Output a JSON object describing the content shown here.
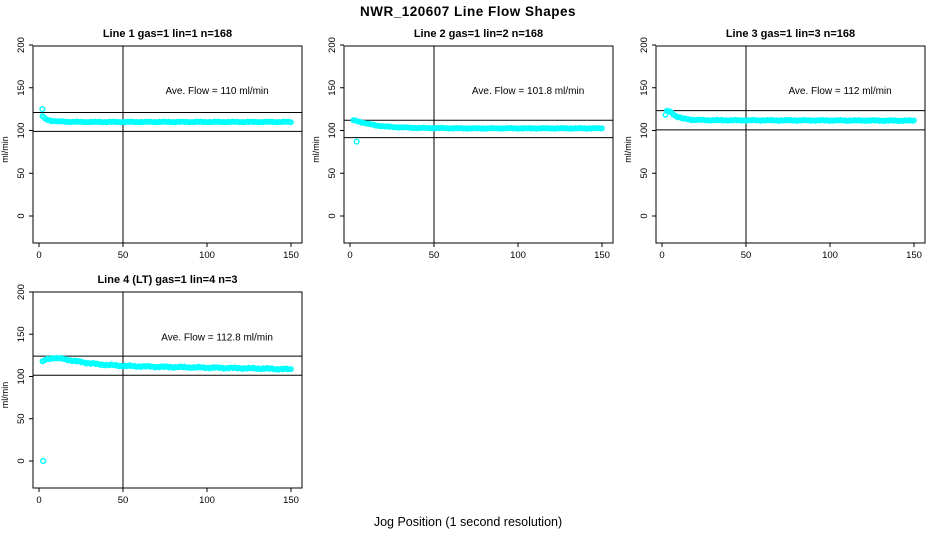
{
  "title": "NWR_120607  Line Flow Shapes",
  "xlabel": "Jog Position (1 second resolution)",
  "marker_color": "#00FFFF",
  "axis_color": "#000000",
  "chart_data": [
    {
      "type": "scatter",
      "title": "Line 1 gas=1 lin=1 n=168",
      "ylabel": "ml/min",
      "ave_flow": 110,
      "annotation": "Ave. Flow =  110  ml/min",
      "x_ticks": [
        0,
        50,
        100,
        150
      ],
      "y_ticks": [
        0,
        50,
        100,
        150,
        200
      ],
      "xlim": [
        -4,
        157
      ],
      "ylim": [
        -32,
        201
      ],
      "vline_x": 50,
      "hlines": [
        121,
        99
      ],
      "keypoints": [
        [
          2,
          117
        ],
        [
          4,
          113
        ],
        [
          7,
          111.5
        ],
        [
          12,
          110.5
        ],
        [
          25,
          110
        ],
        [
          60,
          110
        ],
        [
          100,
          110
        ],
        [
          150,
          110
        ]
      ],
      "outliers": [
        [
          2,
          125
        ]
      ],
      "jitter": 0.5,
      "n_points": 160
    },
    {
      "type": "scatter",
      "title": "Line 2 gas=1 lin=2 n=168",
      "ylabel": "ml/min",
      "ave_flow": 101.8,
      "annotation": "Ave. Flow =  101.8  ml/min",
      "x_ticks": [
        0,
        50,
        100,
        150
      ],
      "y_ticks": [
        0,
        50,
        100,
        150,
        200
      ],
      "xlim": [
        -4,
        157
      ],
      "ylim": [
        -32,
        201
      ],
      "vline_x": 50,
      "hlines": [
        112,
        91.6
      ],
      "keypoints": [
        [
          2,
          112
        ],
        [
          4,
          111
        ],
        [
          8,
          109
        ],
        [
          15,
          106
        ],
        [
          25,
          104
        ],
        [
          40,
          103
        ],
        [
          70,
          102.5
        ],
        [
          150,
          102.5
        ]
      ],
      "outliers": [
        [
          4,
          87
        ]
      ],
      "jitter": 0.5,
      "n_points": 160
    },
    {
      "type": "scatter",
      "title": "Line 3 gas=1 lin=3 n=168",
      "ylabel": "ml/min",
      "ave_flow": 112,
      "annotation": "Ave. Flow =  112  ml/min",
      "x_ticks": [
        0,
        50,
        100,
        150
      ],
      "y_ticks": [
        0,
        50,
        100,
        150,
        200
      ],
      "xlim": [
        -4,
        157
      ],
      "ylim": [
        -32,
        201
      ],
      "vline_x": 50,
      "hlines": [
        123.2,
        100.8
      ],
      "keypoints": [
        [
          2,
          118
        ],
        [
          3,
          123
        ],
        [
          5,
          122
        ],
        [
          8,
          117
        ],
        [
          12,
          114
        ],
        [
          18,
          112.5
        ],
        [
          30,
          112
        ],
        [
          90,
          111.8
        ],
        [
          150,
          111.5
        ]
      ],
      "outliers": [],
      "jitter": 0.6,
      "n_points": 160
    },
    {
      "type": "scatter",
      "title": "Line 4 (LT) gas=1 lin=4 n=3",
      "ylabel": "ml/min",
      "ave_flow": 112.8,
      "annotation": "Ave. Flow =  112.8  ml/min",
      "x_ticks": [
        0,
        50,
        100,
        150
      ],
      "y_ticks": [
        0,
        50,
        100,
        150,
        200
      ],
      "xlim": [
        -4,
        157
      ],
      "ylim": [
        -32,
        201
      ],
      "vline_x": 50,
      "hlines": [
        124.1,
        101.5
      ],
      "keypoints": [
        [
          2,
          117
        ],
        [
          4,
          120
        ],
        [
          8,
          122
        ],
        [
          14,
          121
        ],
        [
          22,
          118
        ],
        [
          35,
          114.5
        ],
        [
          50,
          112.5
        ],
        [
          70,
          111.5
        ],
        [
          100,
          110.5
        ],
        [
          130,
          109.5
        ],
        [
          150,
          108.5
        ]
      ],
      "outliers": [
        [
          2.5,
          0
        ]
      ],
      "jitter": 0.9,
      "n_points": 160
    }
  ]
}
